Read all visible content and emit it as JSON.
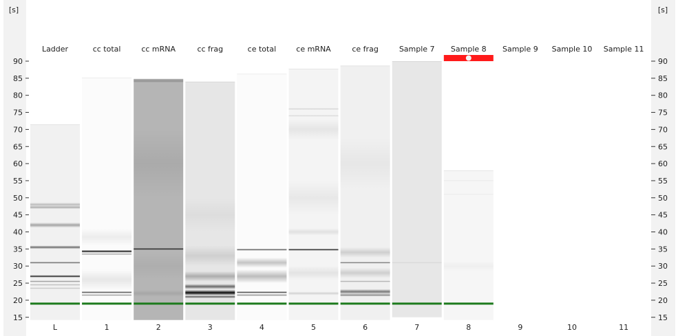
{
  "axis": {
    "unit_left": "[s]",
    "unit_right": "[s]",
    "ticks": [
      90,
      85,
      80,
      75,
      70,
      65,
      60,
      55,
      50,
      45,
      40,
      35,
      30,
      25,
      20,
      15
    ],
    "range": [
      13,
      92
    ]
  },
  "colors": {
    "background": "#ffffff",
    "axis_panel": "#f2f2f2",
    "marker_band": "#1c7a1c",
    "selection": "#ff1a1a"
  },
  "lanes": [
    {
      "id": "lane-ladder",
      "name": "Ladder",
      "number": "L",
      "top_s": 71.5,
      "bottom_s": 14.2,
      "bg": "#f1f1f1",
      "selected": false,
      "empty": false,
      "bands": [
        [
          48,
          1.2,
          0.22
        ],
        [
          47.2,
          1.0,
          0.28
        ],
        [
          42,
          1.5,
          0.32
        ],
        [
          35.5,
          1.0,
          0.55
        ],
        [
          31,
          0.6,
          0.55
        ],
        [
          27,
          0.7,
          0.88
        ],
        [
          25.5,
          0.5,
          0.4
        ],
        [
          24.5,
          0.4,
          0.25
        ],
        [
          23.5,
          0.4,
          0.2
        ]
      ]
    },
    {
      "id": "lane-1",
      "name": "cc total",
      "number": "1",
      "top_s": 85.2,
      "bottom_s": 14.2,
      "bg": "#fbfbfb",
      "selected": false,
      "empty": false,
      "bands": [
        [
          38.5,
          5.0,
          0.06
        ],
        [
          34.3,
          0.8,
          0.92
        ],
        [
          33.5,
          0.4,
          0.4
        ],
        [
          22.3,
          0.6,
          0.7
        ],
        [
          21.5,
          0.5,
          0.45
        ],
        [
          26,
          6,
          0.08
        ]
      ]
    },
    {
      "id": "lane-2",
      "name": "cc mRNA",
      "number": "2",
      "top_s": 84.8,
      "bottom_s": 14.2,
      "bg": "#b5b5b5",
      "selected": false,
      "empty": false,
      "bands": [
        [
          84.2,
          1.0,
          0.2
        ],
        [
          60,
          20,
          0.06
        ],
        [
          35,
          0.6,
          0.8
        ],
        [
          30,
          8,
          0.04
        ],
        [
          22,
          2,
          0.08
        ]
      ]
    },
    {
      "id": "lane-3",
      "name": "cc frag",
      "number": "3",
      "top_s": 84.0,
      "bottom_s": 14.2,
      "bg": "#e6e6e6",
      "selected": false,
      "empty": false,
      "bands": [
        [
          45,
          10,
          0.04
        ],
        [
          33,
          6,
          0.1
        ],
        [
          27,
          3,
          0.25
        ],
        [
          24,
          1.5,
          0.55
        ],
        [
          22.2,
          1.6,
          0.97
        ],
        [
          21.0,
          0.8,
          0.6
        ]
      ]
    },
    {
      "id": "lane-4",
      "name": "ce total",
      "number": "4",
      "top_s": 86.3,
      "bottom_s": 14.2,
      "bg": "#fbfbfb",
      "selected": false,
      "empty": false,
      "bands": [
        [
          34.8,
          0.6,
          0.65
        ],
        [
          31,
          3,
          0.22
        ],
        [
          27,
          4,
          0.25
        ],
        [
          22.3,
          0.6,
          0.75
        ],
        [
          21.5,
          0.6,
          0.45
        ]
      ]
    },
    {
      "id": "lane-5",
      "name": "ce mRNA",
      "number": "5",
      "top_s": 87.8,
      "bottom_s": 14.2,
      "bg": "#f4f4f4",
      "selected": false,
      "empty": false,
      "bands": [
        [
          76,
          0.5,
          0.15
        ],
        [
          74,
          0.5,
          0.12
        ],
        [
          70,
          6,
          0.06
        ],
        [
          50,
          10,
          0.05
        ],
        [
          40,
          2,
          0.08
        ],
        [
          34.8,
          0.6,
          0.88
        ],
        [
          28,
          4,
          0.07
        ],
        [
          22,
          1,
          0.14
        ]
      ]
    },
    {
      "id": "lane-6",
      "name": "ce frag",
      "number": "6",
      "top_s": 88.7,
      "bottom_s": 14.2,
      "bg": "#f0f0f0",
      "selected": false,
      "empty": false,
      "bands": [
        [
          60,
          15,
          0.04
        ],
        [
          34,
          3,
          0.14
        ],
        [
          31,
          0.4,
          0.55
        ],
        [
          28,
          3,
          0.14
        ],
        [
          25.5,
          0.4,
          0.3
        ],
        [
          22.5,
          1.5,
          0.5
        ],
        [
          21.5,
          0.8,
          0.45
        ]
      ]
    },
    {
      "id": "lane-7",
      "name": "Sample 7",
      "number": "7",
      "top_s": 90.0,
      "bottom_s": 15.0,
      "bg": "#e7e7e7",
      "selected": false,
      "empty": false,
      "bands": [
        [
          31,
          0.6,
          0.06
        ]
      ]
    },
    {
      "id": "lane-8",
      "name": "Sample 8",
      "number": "8",
      "top_s": 58.0,
      "bottom_s": 14.2,
      "bg": "#f6f6f6",
      "selected": true,
      "empty": false,
      "bands": [
        [
          55,
          0.5,
          0.05
        ],
        [
          51,
          0.5,
          0.04
        ],
        [
          30,
          3,
          0.03
        ]
      ]
    },
    {
      "id": "lane-9",
      "name": "Sample 9",
      "number": "9",
      "top_s": null,
      "bottom_s": null,
      "bg": "#ffffff",
      "selected": false,
      "empty": true,
      "bands": []
    },
    {
      "id": "lane-10",
      "name": "Sample 10",
      "number": "10",
      "top_s": null,
      "bottom_s": null,
      "bg": "#ffffff",
      "selected": false,
      "empty": true,
      "bands": []
    },
    {
      "id": "lane-11",
      "name": "Sample 11",
      "number": "11",
      "top_s": null,
      "bottom_s": null,
      "bg": "#ffffff",
      "selected": false,
      "empty": true,
      "bands": []
    }
  ],
  "marker_s": 19.0
}
